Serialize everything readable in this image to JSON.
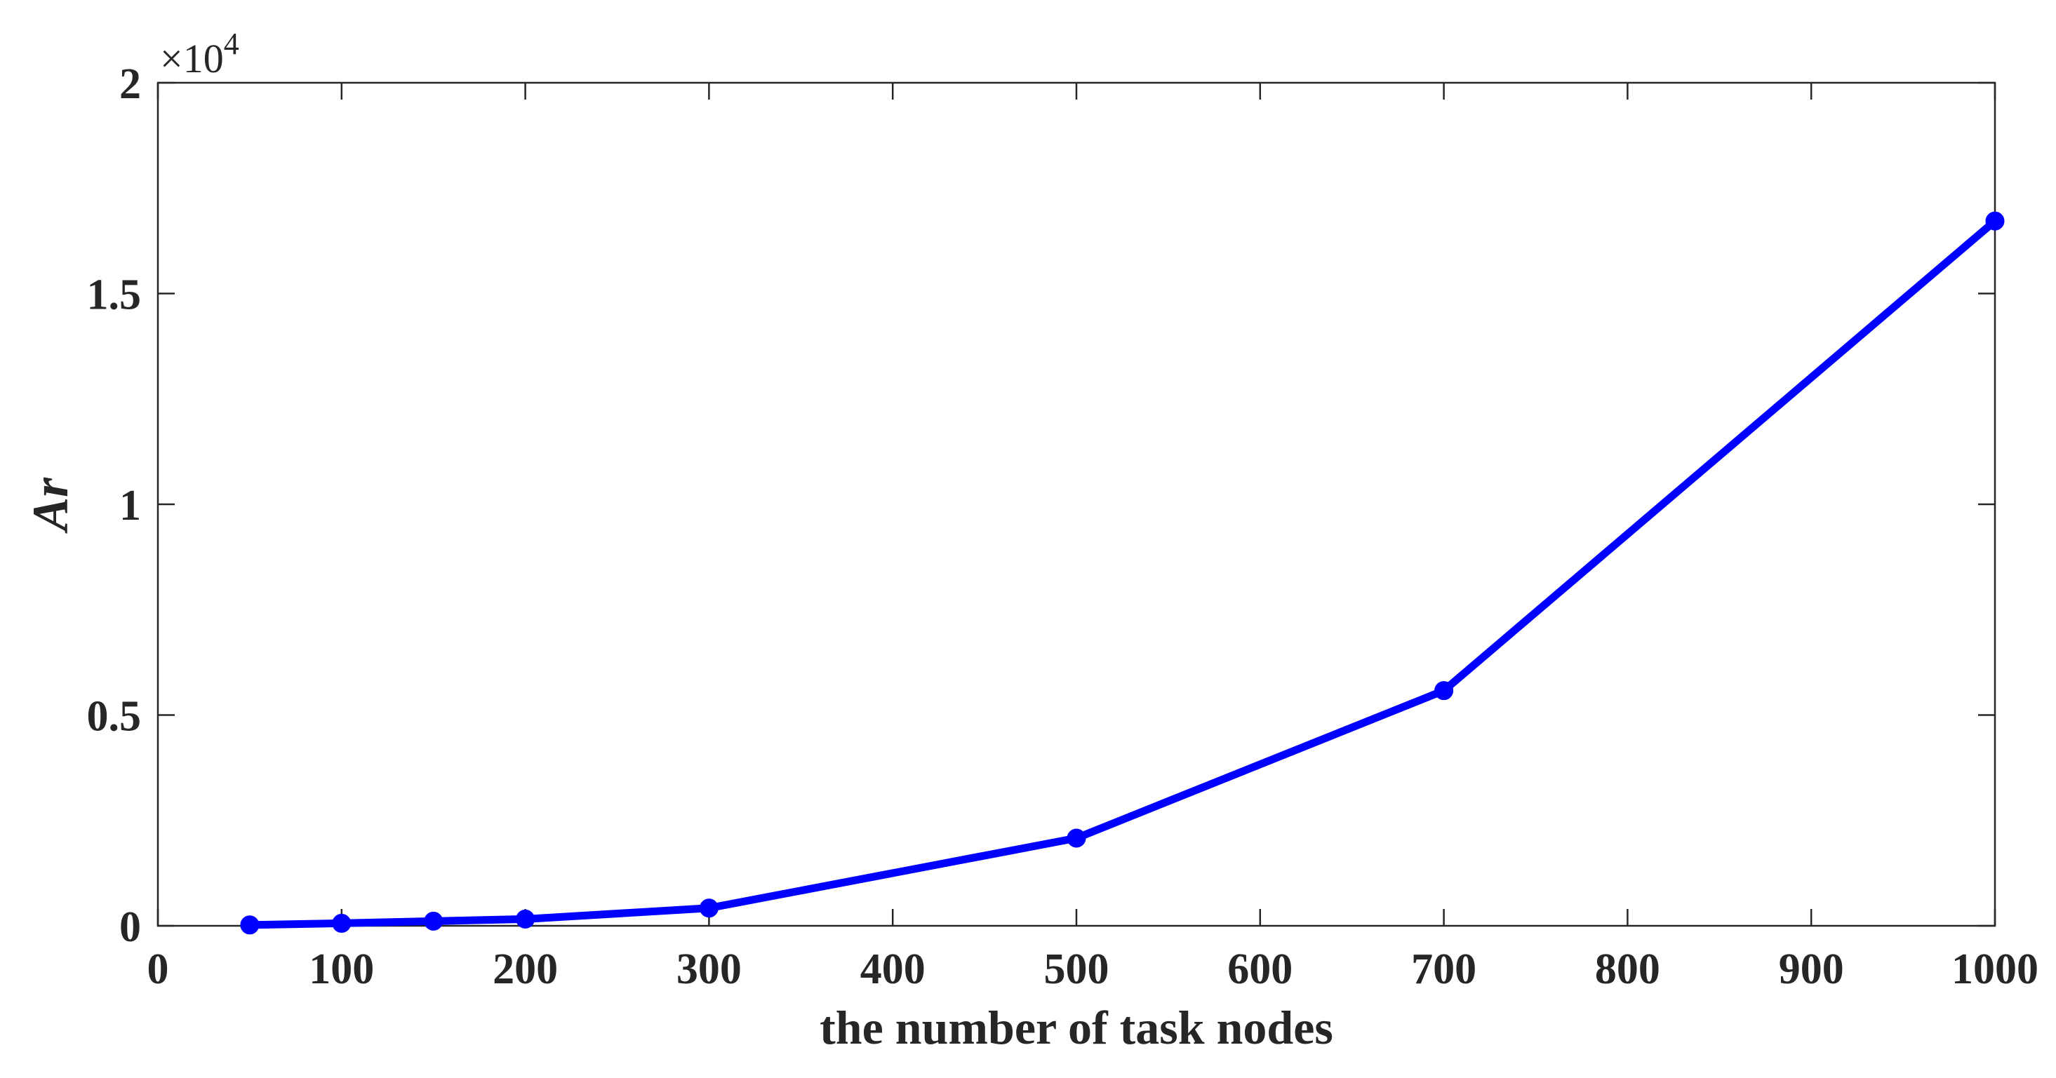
{
  "chart_data": {
    "type": "line",
    "xlabel": "the number of task nodes",
    "ylabel": "Ar",
    "exponent_label": "×10",
    "exponent_power": "4",
    "xlim": [
      0,
      1000
    ],
    "ylim": [
      0,
      20000
    ],
    "x_ticks": [
      0,
      100,
      200,
      300,
      400,
      500,
      600,
      700,
      800,
      900,
      1000
    ],
    "x_tick_labels": [
      "0",
      "100",
      "200",
      "300",
      "400",
      "500",
      "600",
      "700",
      "800",
      "900",
      "1000"
    ],
    "y_ticks": [
      0,
      5000,
      10000,
      15000,
      20000
    ],
    "y_tick_labels": [
      "0",
      "0.5",
      "1",
      "1.5",
      "2"
    ],
    "grid": false,
    "series": [
      {
        "color": "#0000ff",
        "marker": "circle",
        "x": [
          50,
          100,
          150,
          200,
          300,
          500,
          700,
          1000
        ],
        "y": [
          20,
          60,
          110,
          160,
          420,
          2080,
          5580,
          16720
        ]
      }
    ]
  }
}
